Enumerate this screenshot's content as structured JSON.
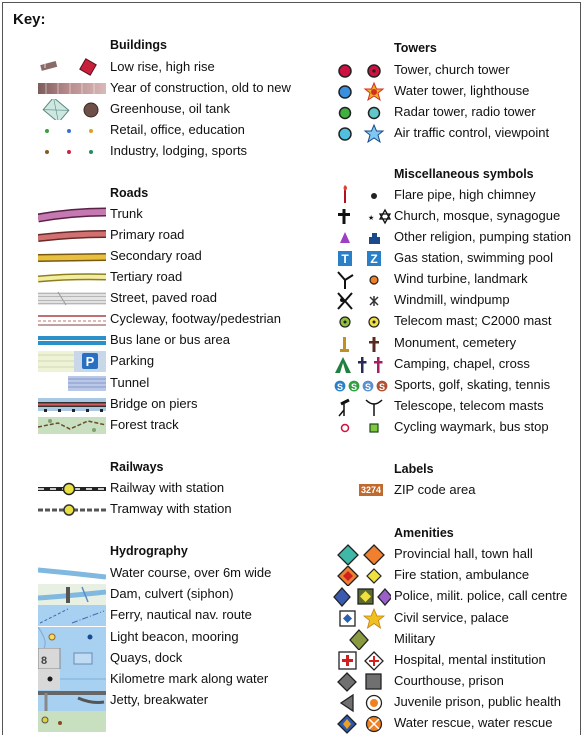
{
  "key_title": "Key:",
  "left": [
    {
      "section": "Buildings",
      "items": [
        {
          "label": "Low rise, high rise",
          "icon": "building-low-high-icon"
        },
        {
          "label": "Year of construction, old to new",
          "icon": "construction-year-gradient-icon"
        },
        {
          "label": "Greenhouse, oil tank",
          "icon": "greenhouse-oil-tank-icon"
        },
        {
          "label": "Retail, office, education",
          "icon": "retail-office-education-dots-icon"
        },
        {
          "label": "Industry, lodging, sports",
          "icon": "industry-lodging-sports-dots-icon"
        }
      ]
    },
    {
      "section": "Roads",
      "items": [
        {
          "label": "Trunk",
          "icon": "trunk-road-icon"
        },
        {
          "label": "Primary road",
          "icon": "primary-road-icon"
        },
        {
          "label": "Secondary road",
          "icon": "secondary-road-icon"
        },
        {
          "label": "Tertiary road",
          "icon": "tertiary-road-icon"
        },
        {
          "label": "Street, paved road",
          "icon": "street-paved-road-icon"
        },
        {
          "label": "Cycleway, footway/pedestrian",
          "icon": "cycleway-footway-icon"
        },
        {
          "label": "Bus lane or bus area",
          "icon": "bus-lane-icon"
        },
        {
          "label": "Parking",
          "icon": "parking-icon"
        },
        {
          "label": "Tunnel",
          "icon": "tunnel-icon"
        },
        {
          "label": "Bridge on piers",
          "icon": "bridge-on-piers-icon"
        },
        {
          "label": "Forest track",
          "icon": "forest-track-icon"
        }
      ]
    },
    {
      "section": "Railways",
      "items": [
        {
          "label": "Railway with station",
          "icon": "railway-station-icon"
        },
        {
          "label": "Tramway with station",
          "icon": "tramway-station-icon"
        }
      ]
    },
    {
      "section": "Hydrography",
      "items": [
        {
          "label": "Water course, over 6m wide",
          "icon": "water-course-icon"
        },
        {
          "label": "Dam, culvert (siphon)",
          "icon": "dam-culvert-icon"
        },
        {
          "label": "Ferry, nautical nav. route",
          "icon": "ferry-route-icon"
        },
        {
          "label": "Light beacon, mooring",
          "icon": "light-beacon-mooring-icon"
        },
        {
          "label": "Quays, dock",
          "icon": "quays-dock-icon"
        },
        {
          "label": "Kilometre mark along water",
          "icon": "kilometre-mark-icon"
        },
        {
          "label": "Jetty, breakwater",
          "icon": "jetty-breakwater-icon"
        }
      ]
    }
  ],
  "right": [
    {
      "section": "Towers",
      "items": [
        {
          "label": "Tower, church tower",
          "icon": "tower-church-tower-icon"
        },
        {
          "label": "Water tower, lighthouse",
          "icon": "water-tower-lighthouse-icon"
        },
        {
          "label": "Radar tower, radio tower",
          "icon": "radar-radio-tower-icon"
        },
        {
          "label": "Air traffic control, viewpoint",
          "icon": "air-traffic-viewpoint-icon"
        }
      ]
    },
    {
      "section": "Miscellaneous symbols",
      "items": [
        {
          "label": "Flare pipe, high chimney",
          "icon": "flare-pipe-chimney-icon"
        },
        {
          "label": "Church, mosque, synagogue",
          "icon": "church-mosque-synagogue-icon"
        },
        {
          "label": "Other religion, pumping station",
          "icon": "other-religion-pumping-icon"
        },
        {
          "label": "Gas station, swimming pool",
          "icon": "gas-station-pool-icon"
        },
        {
          "label": "Wind turbine, landmark",
          "icon": "wind-turbine-landmark-icon"
        },
        {
          "label": "Windmill, windpump",
          "icon": "windmill-windpump-icon"
        },
        {
          "label": "Telecom mast; C2000 mast",
          "icon": "telecom-mast-icon"
        },
        {
          "label": "Monument, cemetery",
          "icon": "monument-cemetery-icon"
        },
        {
          "label": "Camping, chapel, cross",
          "icon": "camping-chapel-cross-icon"
        },
        {
          "label": "Sports, golf, skating, tennis",
          "icon": "sports-golf-skating-tennis-icon"
        },
        {
          "label": "Telescope, telecom masts",
          "icon": "telescope-masts-icon"
        },
        {
          "label": "Cycling waymark, bus stop",
          "icon": "cycling-waymark-bus-stop-icon"
        }
      ]
    },
    {
      "section": "Labels",
      "items": [
        {
          "label": "ZIP code area",
          "icon": "zip-code-icon",
          "badge": "3274"
        }
      ]
    },
    {
      "section": "Amenities",
      "items": [
        {
          "label": "Provincial hall, town hall",
          "icon": "provincial-town-hall-icon"
        },
        {
          "label": "Fire station, ambulance",
          "icon": "fire-station-ambulance-icon"
        },
        {
          "label": "Police, milit. police, call centre",
          "icon": "police-call-centre-icon"
        },
        {
          "label": "Civil service, palace",
          "icon": "civil-service-palace-icon"
        },
        {
          "label": "Military",
          "icon": "military-icon"
        },
        {
          "label": "Hospital, mental institution",
          "icon": "hospital-mental-icon"
        },
        {
          "label": "Courthouse, prison",
          "icon": "courthouse-prison-icon"
        },
        {
          "label": "Juvenile prison, public health",
          "icon": "juvenile-prison-health-icon"
        },
        {
          "label": "Water rescue, water rescue",
          "icon": "water-rescue-icon"
        }
      ]
    }
  ]
}
